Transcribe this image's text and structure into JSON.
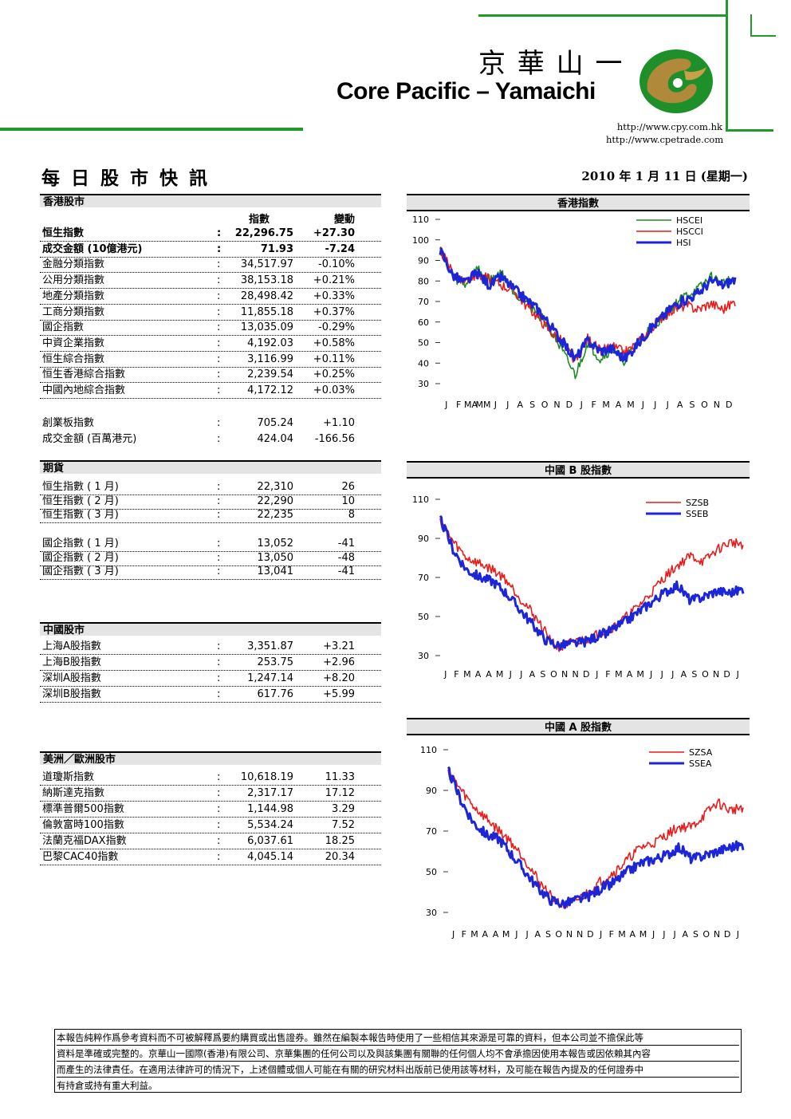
{
  "header": {
    "brand_cn": "京 華 山 一",
    "brand_en": "Core Pacific – Yamaichi",
    "url1": "http://www.cpy.com.hk",
    "url2": "http://www.cpetrade.com"
  },
  "report": {
    "title": "每 日 股 市 快 訊",
    "date": "2010 年 1 月 11 日 (星期一)"
  },
  "hk": {
    "section": "香港股市",
    "col_index": "指數",
    "col_change": "變動",
    "rows": [
      {
        "name": "恒生指數",
        "index": "22,296.75",
        "change": "+27.30"
      },
      {
        "name": "成交金額 (10億港元)",
        "index": "71.93",
        "change": "-7.24"
      },
      {
        "name": "金融分類指數",
        "index": "34,517.97",
        "change": "-0.10%"
      },
      {
        "name": "公用分類指數",
        "index": "38,153.18",
        "change": "+0.21%"
      },
      {
        "name": "地產分類指數",
        "index": "28,498.42",
        "change": "+0.33%"
      },
      {
        "name": "工商分類指數",
        "index": "11,855.18",
        "change": "+0.37%"
      },
      {
        "name": "國企指數",
        "index": "13,035.09",
        "change": "-0.29%"
      },
      {
        "name": "中資企業指數",
        "index": "4,192.03",
        "change": "+0.58%"
      },
      {
        "name": "恒生綜合指數",
        "index": "3,116.99",
        "change": "+0.11%"
      },
      {
        "name": "恒生香港綜合指數",
        "index": "2,239.54",
        "change": "+0.25%"
      },
      {
        "name": "中國內地綜合指數",
        "index": "4,172.12",
        "change": "+0.03%"
      }
    ],
    "gem": [
      {
        "name": "創業板指數",
        "index": "705.24",
        "change": "+1.10"
      },
      {
        "name": "成交金額 (百萬港元)",
        "index": "424.04",
        "change": "-166.56"
      }
    ]
  },
  "futures": {
    "section": "期貨",
    "hsi": [
      {
        "name": "恒生指數 ( 1 月)",
        "index": "22,310",
        "change": "26"
      },
      {
        "name": "恒生指數 ( 2 月)",
        "index": "22,290",
        "change": "10"
      },
      {
        "name": "恒生指數 ( 3 月)",
        "index": "22,235",
        "change": "8"
      }
    ],
    "hscei": [
      {
        "name": "國企指數 ( 1 月)",
        "index": "13,052",
        "change": "-41"
      },
      {
        "name": "國企指數 ( 2 月)",
        "index": "13,050",
        "change": "-48"
      },
      {
        "name": "國企指數 ( 3 月)",
        "index": "13,041",
        "change": "-41"
      }
    ]
  },
  "china": {
    "section": "中國股市",
    "rows": [
      {
        "name": "上海A股指數",
        "index": "3,351.87",
        "change": "+3.21"
      },
      {
        "name": "上海B股指數",
        "index": "253.75",
        "change": "+2.96"
      },
      {
        "name": "深圳A股指數",
        "index": "1,247.14",
        "change": "+8.20"
      },
      {
        "name": "深圳B股指數",
        "index": "617.76",
        "change": "+5.99"
      }
    ]
  },
  "us_eu": {
    "section": "美洲／歐洲股市",
    "rows": [
      {
        "name": "道瓊斯指數",
        "index": "10,618.19",
        "change": "11.33"
      },
      {
        "name": "納斯達克指數",
        "index": "2,317.17",
        "change": "17.12"
      },
      {
        "name": "標準普爾500指數",
        "index": "1,144.98",
        "change": "3.29"
      },
      {
        "name": "倫敦富時100指數",
        "index": "5,534.24",
        "change": "7.52"
      },
      {
        "name": "法蘭克福DAX指數",
        "index": "6,037.61",
        "change": "18.25"
      },
      {
        "name": "巴黎CAC40指數",
        "index": "4,045.14",
        "change": "20.34"
      }
    ]
  },
  "colon": ":",
  "disclaimer": [
    "本報告純粹作爲參考資料而不可被解釋爲要約購買或出售證券。雖然在編製本報告時使用了一些相信其來源是可靠的資料，但本公司並不擔保此等",
    "資料是準確或完整的。京華山一國際(香港)有限公司、京華集團的任何公司以及與該集團有關聯的任何個人均不會承擔因使用本報告或因依賴其內容",
    "而產生的法律責任。在適用法律許可的情況下，上述個體或個人可能在有關的研究材料出版前已使用該等材料，及可能在報告內提及的任何證券中",
    "有持倉或持有重大利益。"
  ],
  "chart_data": [
    {
      "type": "line",
      "title": "香港指數",
      "ylim": [
        30,
        110
      ],
      "yticks": [
        "110",
        "100",
        "90",
        "80",
        "70",
        "60",
        "50",
        "40",
        "30"
      ],
      "xticks": [
        "J",
        "F",
        "MA",
        "MM",
        "J",
        "J",
        "A",
        "S",
        "O",
        "N",
        "D",
        "J",
        "F",
        "M",
        "A",
        "M",
        "J",
        "J",
        "J",
        "A",
        "S",
        "O",
        "N",
        "D"
      ],
      "series": [
        {
          "name": "HSCEI",
          "color": "#1e8c1e",
          "values": [
            96,
            82,
            78,
            86,
            80,
            84,
            75,
            70,
            64,
            56,
            45,
            34,
            50,
            42,
            47,
            41,
            50,
            56,
            62,
            68,
            73,
            76,
            82,
            79,
            81
          ]
        },
        {
          "name": "HSCCI",
          "color": "#e81c1c",
          "values": [
            95,
            84,
            80,
            83,
            81,
            78,
            75,
            68,
            62,
            55,
            50,
            40,
            52,
            46,
            48,
            45,
            49,
            56,
            62,
            66,
            68,
            66,
            69,
            66,
            70
          ]
        },
        {
          "name": "HSI",
          "color": "#1c26d8",
          "values": [
            95,
            83,
            79,
            84,
            78,
            82,
            76,
            71,
            66,
            58,
            50,
            42,
            51,
            46,
            47,
            42,
            49,
            56,
            62,
            68,
            71,
            74,
            80,
            78,
            81
          ]
        }
      ]
    },
    {
      "type": "line",
      "title": "中國 B 股指數",
      "ylim": [
        30,
        110
      ],
      "yticks": [
        "110",
        "90",
        "70",
        "50",
        "30"
      ],
      "xticks": [
        "J",
        "F",
        "M",
        "A",
        "A",
        "M",
        "J",
        "J",
        "A",
        "S",
        "O",
        "N",
        "N",
        "D",
        "J",
        "F",
        "M",
        "A",
        "M",
        "J",
        "J",
        "J",
        "A",
        "S",
        "O",
        "N",
        "D",
        "J"
      ],
      "series": [
        {
          "name": "SZSB",
          "color": "#e81c1c",
          "values": [
            100,
            88,
            80,
            77,
            74,
            69,
            60,
            52,
            42,
            33,
            37,
            38,
            41,
            44,
            49,
            55,
            62,
            70,
            76,
            81,
            78,
            84,
            88,
            87
          ]
        },
        {
          "name": "SSEB",
          "color": "#1c26d8",
          "values": [
            100,
            84,
            74,
            70,
            68,
            62,
            54,
            46,
            38,
            35,
            36,
            37,
            40,
            43,
            47,
            52,
            57,
            62,
            66,
            58,
            60,
            63,
            62,
            64
          ]
        }
      ]
    },
    {
      "type": "line",
      "title": "中國 A 股指數",
      "ylim": [
        30,
        110
      ],
      "yticks": [
        "110",
        "90",
        "70",
        "50",
        "30"
      ],
      "xticks": [
        "J",
        "F",
        "M",
        "A",
        "A",
        "M",
        "J",
        "J",
        "A",
        "S",
        "O",
        "N",
        "N",
        "D",
        "J",
        "F",
        "M",
        "A",
        "M",
        "J",
        "J",
        "J",
        "A",
        "S",
        "O",
        "N",
        "D",
        "J"
      ],
      "series": [
        {
          "name": "SZSA",
          "color": "#e81c1c",
          "values": [
            100,
            90,
            82,
            76,
            70,
            64,
            56,
            46,
            38,
            33,
            36,
            40,
            46,
            50,
            56,
            62,
            64,
            68,
            72,
            72,
            78,
            84,
            80,
            82
          ]
        },
        {
          "name": "SSEA",
          "color": "#1c26d8",
          "values": [
            100,
            85,
            74,
            68,
            66,
            58,
            50,
            42,
            36,
            34,
            36,
            38,
            42,
            45,
            50,
            54,
            56,
            58,
            62,
            56,
            58,
            60,
            62,
            63
          ]
        }
      ]
    }
  ]
}
